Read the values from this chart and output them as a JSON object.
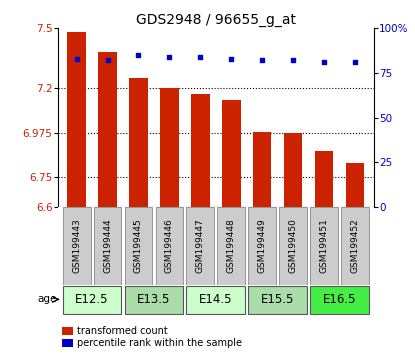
{
  "title": "GDS2948 / 96655_g_at",
  "samples": [
    "GSM199443",
    "GSM199444",
    "GSM199445",
    "GSM199446",
    "GSM199447",
    "GSM199448",
    "GSM199449",
    "GSM199450",
    "GSM199451",
    "GSM199452"
  ],
  "transformed_count": [
    7.48,
    7.38,
    7.25,
    7.2,
    7.17,
    7.14,
    6.98,
    6.975,
    6.88,
    6.82
  ],
  "percentile_rank": [
    83,
    82,
    85,
    84,
    84,
    83,
    82,
    82,
    81,
    81
  ],
  "ylim_left": [
    6.6,
    7.5
  ],
  "ylim_right": [
    0,
    100
  ],
  "yticks_left": [
    6.6,
    6.75,
    6.975,
    7.2,
    7.5
  ],
  "yticks_left_labels": [
    "6.6",
    "6.75",
    "6.975",
    "7.2",
    "7.5"
  ],
  "yticks_right": [
    0,
    25,
    50,
    75,
    100
  ],
  "yticks_right_labels": [
    "0",
    "25",
    "50",
    "75",
    "100%"
  ],
  "age_groups": [
    {
      "label": "E12.5",
      "samples": [
        0,
        1
      ],
      "color": "#ccffcc"
    },
    {
      "label": "E13.5",
      "samples": [
        2,
        3
      ],
      "color": "#aaddaa"
    },
    {
      "label": "E14.5",
      "samples": [
        4,
        5
      ],
      "color": "#ccffcc"
    },
    {
      "label": "E15.5",
      "samples": [
        6,
        7
      ],
      "color": "#aaddaa"
    },
    {
      "label": "E16.5",
      "samples": [
        8,
        9
      ],
      "color": "#44ee44"
    }
  ],
  "bar_color": "#cc2200",
  "dot_color": "#0000cc",
  "bar_width": 0.6,
  "sample_box_color": "#cccccc",
  "age_label_fontsize": 8.5,
  "sample_fontsize": 6.5,
  "title_fontsize": 10
}
